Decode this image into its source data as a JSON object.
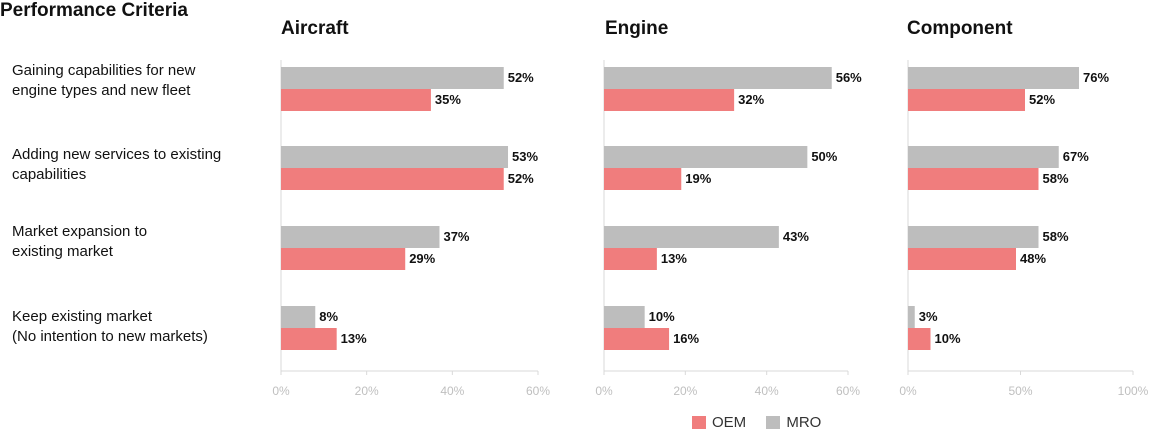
{
  "header": {
    "criteria_title": "Performance Criteria"
  },
  "criteria": [
    {
      "line1": "Gaining capabilities for new",
      "line2": "engine types and new fleet"
    },
    {
      "line1": "Adding new services to existing",
      "line2": "capabilities"
    },
    {
      "line1": "Market expansion to",
      "line2": "existing market"
    },
    {
      "line1": "Keep existing market",
      "line2": "(No intention to new markets)"
    }
  ],
  "legend": {
    "oem": "OEM",
    "mro": "MRO"
  },
  "colors": {
    "oem": "#f07d7d",
    "mro": "#bdbdbd",
    "axis": "#d9d9d9",
    "tick": "#bfbfbf"
  },
  "chart_data": [
    {
      "type": "bar",
      "title": "Aircraft",
      "categories": [
        "Gaining capabilities for new engine types and new fleet",
        "Adding new services to existing capabilities",
        "Market expansion to existing market",
        "Keep existing market (No intention to new markets)"
      ],
      "series": [
        {
          "name": "MRO",
          "values": [
            52,
            53,
            37,
            8
          ]
        },
        {
          "name": "OEM",
          "values": [
            35,
            52,
            29,
            13
          ]
        }
      ],
      "xlim": [
        0,
        60
      ],
      "ticks": [
        "0%",
        "20%",
        "40%",
        "60%"
      ],
      "tick_values": [
        0,
        20,
        40,
        60
      ]
    },
    {
      "type": "bar",
      "title": "Engine",
      "categories": [
        "Gaining capabilities for new engine types and new fleet",
        "Adding new services to existing capabilities",
        "Market expansion to existing market",
        "Keep existing market (No intention to new markets)"
      ],
      "series": [
        {
          "name": "MRO",
          "values": [
            56,
            50,
            43,
            10
          ]
        },
        {
          "name": "OEM",
          "values": [
            32,
            19,
            13,
            16
          ]
        }
      ],
      "xlim": [
        0,
        60
      ],
      "ticks": [
        "0%",
        "20%",
        "40%",
        "60%"
      ],
      "tick_values": [
        0,
        20,
        40,
        60
      ]
    },
    {
      "type": "bar",
      "title": "Component",
      "categories": [
        "Gaining capabilities for new engine types and new fleet",
        "Adding new services to existing capabilities",
        "Market expansion to existing market",
        "Keep existing market (No intention to new markets)"
      ],
      "series": [
        {
          "name": "MRO",
          "values": [
            76,
            67,
            58,
            3
          ]
        },
        {
          "name": "OEM",
          "values": [
            52,
            58,
            48,
            10
          ]
        }
      ],
      "xlim": [
        0,
        100
      ],
      "ticks": [
        "0%",
        "50%",
        "100%"
      ],
      "tick_values": [
        0,
        50,
        100
      ]
    }
  ]
}
